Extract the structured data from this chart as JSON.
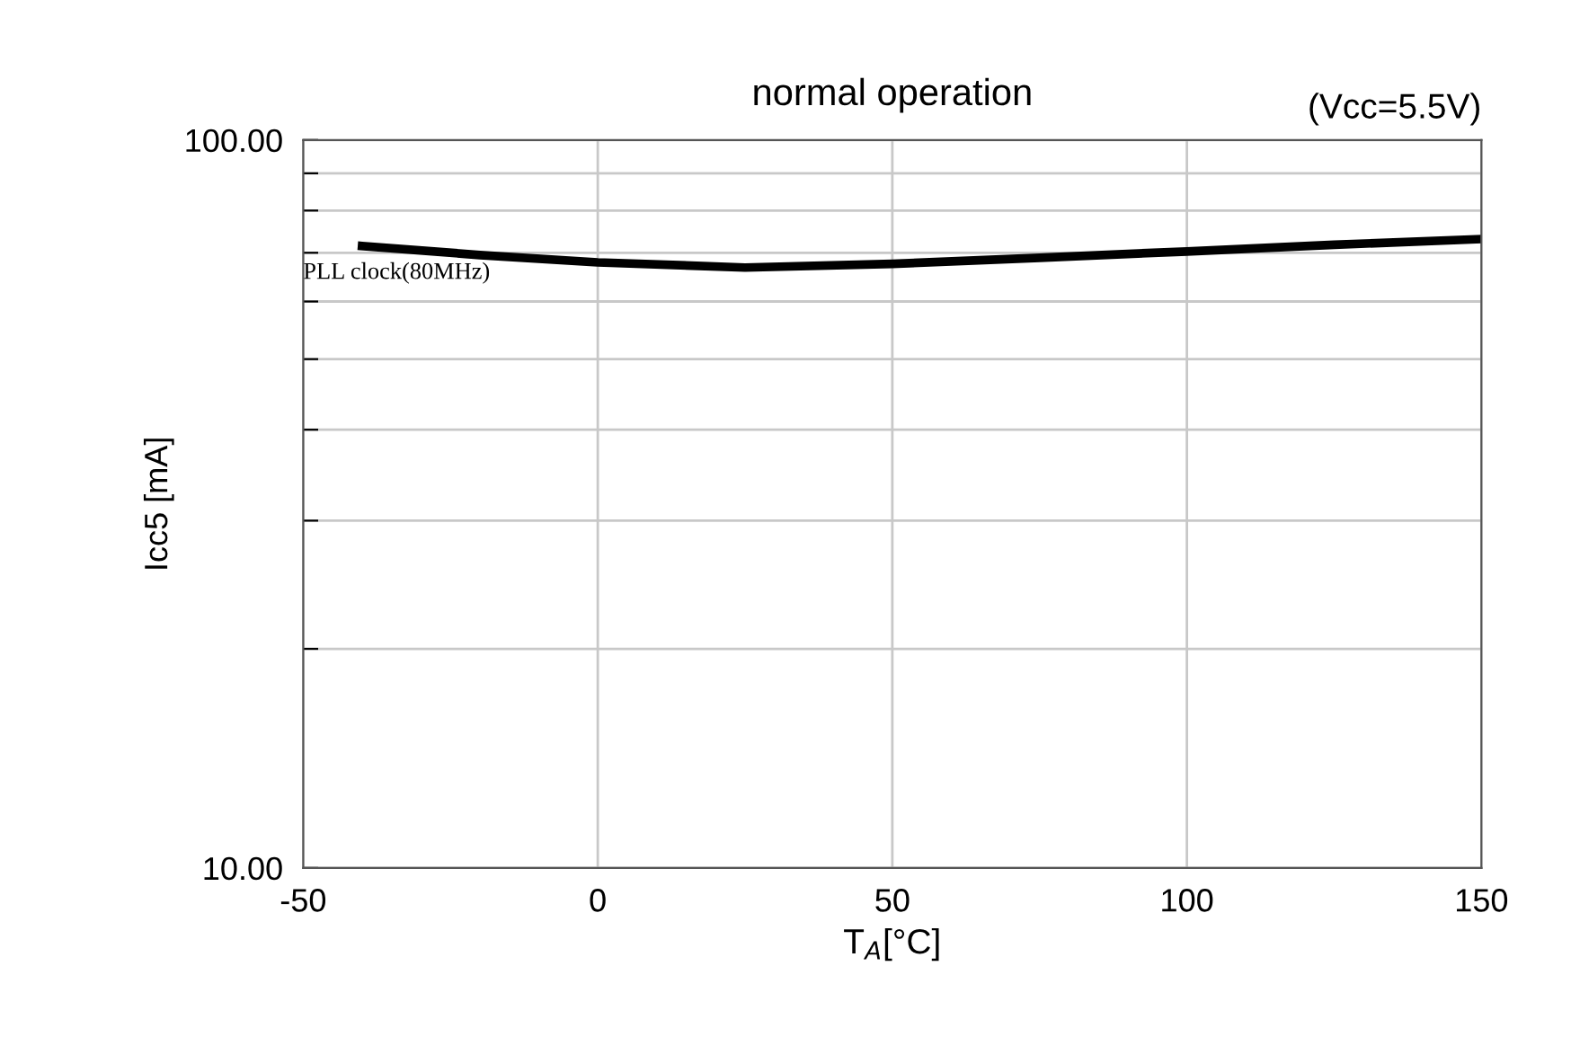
{
  "chart_data": {
    "type": "line",
    "title": "normal operation",
    "xlabel": "T$_{A}$[°C]",
    "ylabel": "Icc5 [mA]",
    "annotations": [
      "(Vcc=5.5V)"
    ],
    "log": "y",
    "grid": true,
    "legend": false,
    "marker": "none",
    "line_style": "solid",
    "xlim": [
      -50,
      150
    ],
    "xticks": [
      -50,
      0,
      50,
      100,
      150
    ],
    "ylim": [
      10,
      100
    ],
    "yticks": [
      {
        "value": 10,
        "label": "10.00"
      },
      {
        "value": 20,
        "label": null
      },
      {
        "value": 30,
        "label": null
      },
      {
        "value": 40,
        "label": null
      },
      {
        "value": 50,
        "label": null
      },
      {
        "value": 60,
        "label": null
      },
      {
        "value": 70,
        "label": null
      },
      {
        "value": 80,
        "label": null
      },
      {
        "value": 90,
        "label": null
      },
      {
        "value": 100,
        "label": "100.00"
      }
    ],
    "series": [
      {
        "name": "PLL clock(80MHz)",
        "color": "#000000",
        "x": [
          -40,
          -20,
          0,
          25,
          50,
          75,
          100,
          125,
          150
        ],
        "values": [
          71.5,
          69.5,
          67.9,
          66.8,
          67.6,
          68.9,
          70.3,
          71.8,
          73.1
        ]
      }
    ]
  }
}
